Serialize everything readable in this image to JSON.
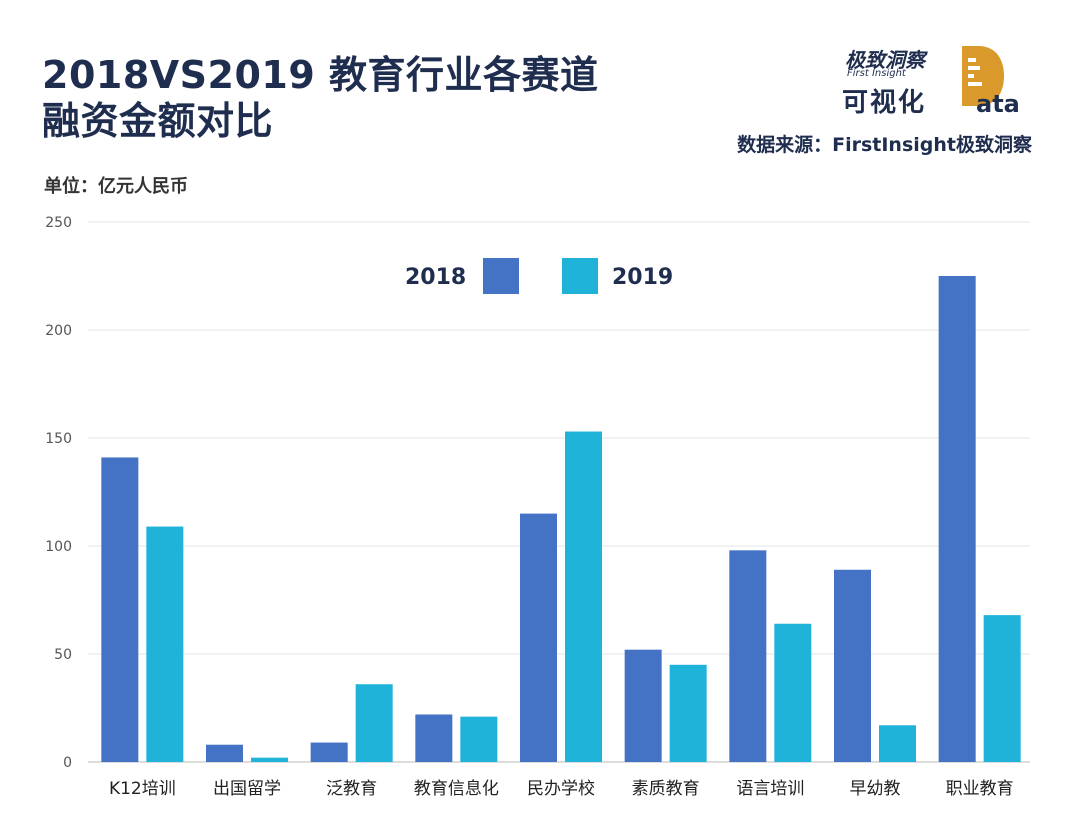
{
  "header": {
    "title_line1": "2018VS2019 教育行业各赛道",
    "title_line2": "融资金额对比",
    "unit": "单位：亿元人民币",
    "source": "数据来源：FirstInsight极致洞察"
  },
  "logo": {
    "brand": "极致洞察",
    "brand_en": "First Insight",
    "main": "可视化",
    "data_d": "D",
    "data_rest": "ata"
  },
  "colors": {
    "series2018": "#4472c4",
    "series2019": "#1fb3d9",
    "title": "#1f2d4f"
  },
  "chart_data": {
    "type": "bar",
    "title": "2018VS2019 教育行业各赛道融资金额对比",
    "ylabel": "单位：亿元人民币",
    "ylim": [
      0,
      250
    ],
    "yticks": [
      0,
      50,
      100,
      150,
      200,
      250
    ],
    "legend_position": "top-center",
    "grid": true,
    "categories": [
      "K12培训",
      "出国留学",
      "泛教育",
      "教育信息化",
      "民办学校",
      "素质教育",
      "语言培训",
      "早幼教",
      "职业教育"
    ],
    "series": [
      {
        "name": "2018",
        "values": [
          141,
          8,
          9,
          22,
          115,
          52,
          98,
          89,
          225
        ]
      },
      {
        "name": "2019",
        "values": [
          109,
          2,
          36,
          21,
          153,
          45,
          64,
          17,
          68
        ]
      }
    ]
  }
}
